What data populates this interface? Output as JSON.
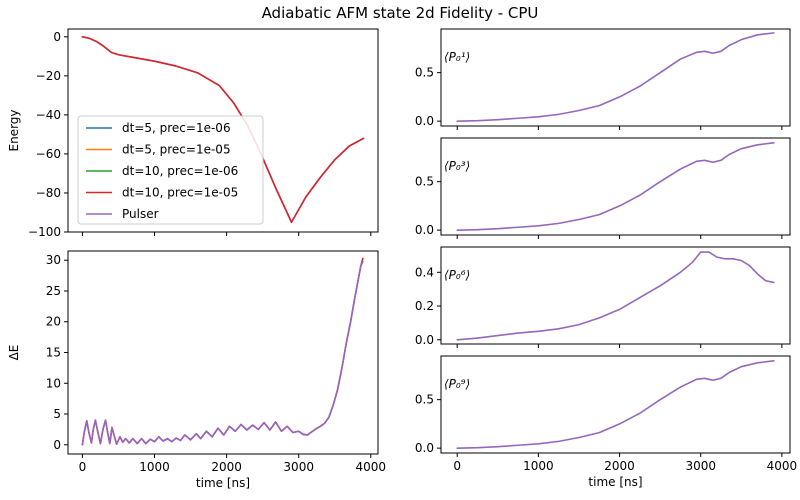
{
  "figure": {
    "title": "Adiabatic AFM state 2d Fidelity - CPU"
  },
  "colors": {
    "dt5_prec1e-06": "#1f77b4",
    "dt5_prec1e-05": "#ff7f0e",
    "dt10_prec1e-06": "#2ca02c",
    "dt10_prec1e-05": "#d62728",
    "pulser": "#9467bd"
  },
  "chart_data": [
    {
      "id": "energy",
      "type": "line",
      "title": "",
      "xlabel": "",
      "ylabel": "Energy",
      "xlim": [
        -200,
        4100
      ],
      "ylim": [
        -100,
        4
      ],
      "xticks": [
        0,
        1000,
        2000,
        3000,
        4000
      ],
      "yticks": [
        0,
        -20,
        -40,
        -60,
        -80,
        -100
      ],
      "ytick_labels": [
        "0",
        "−20",
        "−40",
        "−60",
        "−80",
        "−100"
      ],
      "show_xtick_labels": false,
      "grid": false,
      "legend": {
        "placement": "lower-left",
        "entries": [
          "dt=5, prec=1e-06",
          "dt=5, prec=1e-05",
          "dt=10, prec=1e-06",
          "dt=10, prec=1e-05",
          "Pulser"
        ]
      },
      "series": [
        {
          "name": "Pulser",
          "color_key": "pulser",
          "x": [
            0,
            100,
            200,
            300,
            400,
            500,
            700,
            1000,
            1300,
            1600,
            1900,
            2100,
            2300,
            2500,
            2700,
            2900,
            3100,
            3300,
            3500,
            3700,
            3900
          ],
          "y": [
            0,
            -0.8,
            -2.5,
            -5,
            -8,
            -9.2,
            -10.5,
            -12.5,
            -15,
            -18.5,
            -25,
            -34,
            -46,
            -62,
            -79,
            -95,
            -82,
            -72,
            -63,
            -56,
            -52
          ]
        },
        {
          "name": "dt=10, prec=1e-05",
          "color_key": "dt10_prec1e-05",
          "x": [
            0,
            100,
            200,
            300,
            400,
            500,
            700,
            1000,
            1300,
            1600,
            1900,
            2100,
            2300,
            2500,
            2700,
            2900,
            3100,
            3300,
            3500,
            3700,
            3900
          ],
          "y": [
            0,
            -0.8,
            -2.5,
            -5,
            -8,
            -9.2,
            -10.5,
            -12.5,
            -15,
            -18.5,
            -25,
            -34,
            -46,
            -62,
            -79,
            -95,
            -82,
            -72,
            -63,
            -56,
            -52
          ]
        }
      ]
    },
    {
      "id": "delta-e",
      "type": "line",
      "title": "",
      "xlabel": "time [ns]",
      "ylabel": "ΔE",
      "xlim": [
        -200,
        4100
      ],
      "ylim": [
        -1.5,
        31.5
      ],
      "xticks": [
        0,
        1000,
        2000,
        3000,
        4000
      ],
      "yticks": [
        0,
        5,
        10,
        15,
        20,
        25,
        30
      ],
      "ytick_labels": [
        "0",
        "5",
        "10",
        "15",
        "20",
        "25",
        "30"
      ],
      "show_xtick_labels": true,
      "grid": false,
      "series": [
        {
          "name": "dt=10, prec=1e-05",
          "color_key": "dt10_prec1e-05",
          "x": [
            0,
            25,
            60,
            90,
            125,
            150,
            180,
            215,
            250,
            285,
            320,
            350,
            380,
            410,
            440,
            475,
            520,
            560,
            600,
            650,
            700,
            760,
            820,
            880,
            940,
            1000,
            1060,
            1120,
            1180,
            1240,
            1300,
            1360,
            1420,
            1500,
            1580,
            1640,
            1720,
            1800,
            1880,
            1960,
            2040,
            2120,
            2200,
            2280,
            2360,
            2440,
            2520,
            2600,
            2680,
            2760,
            2840,
            2920,
            3000,
            3060,
            3120,
            3180,
            3240,
            3300,
            3360,
            3420,
            3480,
            3540,
            3600,
            3660,
            3720,
            3780,
            3820,
            3860,
            3890
          ],
          "y": [
            0,
            2,
            3.9,
            2,
            0.3,
            2.5,
            4,
            2,
            0.2,
            2.5,
            4,
            2,
            0.2,
            2.8,
            1.5,
            0.1,
            1.3,
            0.4,
            1,
            0.3,
            1,
            0.2,
            1,
            0.2,
            0.9,
            0.5,
            1.3,
            0.6,
            1,
            0.5,
            1.1,
            0.7,
            1.6,
            0.8,
            1.8,
            1,
            2.2,
            1.3,
            2.7,
            1.6,
            3,
            2.2,
            3.3,
            2.4,
            3.2,
            2.5,
            3.6,
            2.4,
            3.7,
            2.2,
            3,
            2,
            2.2,
            1.7,
            1.6,
            2.1,
            2.6,
            3,
            3.5,
            4.5,
            6.5,
            9,
            12.5,
            16.5,
            20,
            24,
            26.5,
            29,
            30.3
          ]
        },
        {
          "name": "Pulser",
          "color_key": "pulser",
          "x": [
            0,
            25,
            60,
            90,
            125,
            150,
            180,
            215,
            250,
            285,
            320,
            350,
            380,
            410,
            440,
            475,
            520,
            560,
            600,
            650,
            700,
            760,
            820,
            880,
            940,
            1000,
            1060,
            1120,
            1180,
            1240,
            1300,
            1360,
            1420,
            1500,
            1580,
            1640,
            1720,
            1800,
            1880,
            1960,
            2040,
            2120,
            2200,
            2280,
            2360,
            2440,
            2520,
            2600,
            2680,
            2760,
            2840,
            2920,
            3000,
            3060,
            3120,
            3180,
            3240,
            3300,
            3360,
            3420,
            3480,
            3540,
            3600,
            3660,
            3720,
            3780,
            3820,
            3860,
            3890
          ],
          "y": [
            0,
            2,
            3.9,
            2,
            0.3,
            2.5,
            4,
            2,
            0.2,
            2.5,
            4,
            2,
            0.2,
            2.8,
            1.5,
            0.1,
            1.3,
            0.4,
            1,
            0.3,
            1,
            0.2,
            1,
            0.2,
            0.9,
            0.5,
            1.3,
            0.6,
            1,
            0.5,
            1.1,
            0.7,
            1.6,
            0.8,
            1.8,
            1,
            2.2,
            1.3,
            2.7,
            1.6,
            3,
            2.2,
            3.3,
            2.4,
            3.2,
            2.5,
            3.6,
            2.4,
            3.7,
            2.2,
            3,
            2,
            2.2,
            1.7,
            1.6,
            2.1,
            2.6,
            3,
            3.5,
            4.5,
            6.5,
            9,
            12.5,
            16.5,
            20,
            24,
            26.5,
            29,
            29.8
          ]
        }
      ]
    },
    {
      "id": "p0-1",
      "type": "line",
      "title": "",
      "xlabel": "",
      "ylabel": "",
      "annotation": {
        "text": "⟨P₀¹⟩",
        "placement": "top-left"
      },
      "xlim": [
        -200,
        4100
      ],
      "ylim": [
        -0.05,
        0.95
      ],
      "xticks": [
        0,
        1000,
        2000,
        3000,
        4000
      ],
      "yticks": [
        0,
        0.5
      ],
      "ytick_labels": [
        "0.0",
        "0.5"
      ],
      "show_xtick_labels": false,
      "grid": false,
      "series": [
        {
          "name": "Pulser",
          "color_key": "pulser",
          "x": [
            0,
            250,
            500,
            750,
            1000,
            1250,
            1500,
            1750,
            2000,
            2250,
            2500,
            2750,
            2950,
            3050,
            3150,
            3250,
            3350,
            3500,
            3700,
            3900
          ],
          "y": [
            0,
            0.005,
            0.015,
            0.03,
            0.045,
            0.07,
            0.11,
            0.16,
            0.25,
            0.36,
            0.5,
            0.64,
            0.71,
            0.72,
            0.7,
            0.72,
            0.78,
            0.84,
            0.89,
            0.91
          ]
        }
      ]
    },
    {
      "id": "p0-3",
      "type": "line",
      "title": "",
      "xlabel": "",
      "ylabel": "",
      "annotation": {
        "text": "⟨P₀³⟩",
        "placement": "top-left"
      },
      "xlim": [
        -200,
        4100
      ],
      "ylim": [
        -0.05,
        0.95
      ],
      "xticks": [
        0,
        1000,
        2000,
        3000,
        4000
      ],
      "yticks": [
        0,
        0.5
      ],
      "ytick_labels": [
        "0.0",
        "0.5"
      ],
      "show_xtick_labels": false,
      "grid": false,
      "series": [
        {
          "name": "Pulser",
          "color_key": "pulser",
          "x": [
            0,
            250,
            500,
            750,
            1000,
            1250,
            1500,
            1750,
            2000,
            2250,
            2500,
            2750,
            2950,
            3050,
            3150,
            3250,
            3350,
            3500,
            3700,
            3900
          ],
          "y": [
            0,
            0.005,
            0.015,
            0.03,
            0.045,
            0.07,
            0.11,
            0.16,
            0.25,
            0.36,
            0.5,
            0.63,
            0.71,
            0.72,
            0.7,
            0.72,
            0.78,
            0.84,
            0.88,
            0.9
          ]
        }
      ]
    },
    {
      "id": "p0-6",
      "type": "line",
      "title": "",
      "xlabel": "",
      "ylabel": "",
      "annotation": {
        "text": "⟨P₀⁶⟩",
        "placement": "top-left"
      },
      "xlim": [
        -200,
        4100
      ],
      "ylim": [
        -0.025,
        0.55
      ],
      "xticks": [
        0,
        1000,
        2000,
        3000,
        4000
      ],
      "yticks": [
        0,
        0.2,
        0.4
      ],
      "ytick_labels": [
        "0.0",
        "0.2",
        "0.4"
      ],
      "show_xtick_labels": false,
      "grid": false,
      "series": [
        {
          "name": "Pulser",
          "color_key": "pulser",
          "x": [
            0,
            250,
            500,
            750,
            1000,
            1250,
            1500,
            1750,
            2000,
            2250,
            2500,
            2750,
            2900,
            3000,
            3100,
            3200,
            3300,
            3400,
            3500,
            3600,
            3700,
            3800,
            3900
          ],
          "y": [
            0,
            0.01,
            0.025,
            0.04,
            0.05,
            0.065,
            0.09,
            0.13,
            0.18,
            0.25,
            0.32,
            0.4,
            0.46,
            0.52,
            0.52,
            0.49,
            0.48,
            0.48,
            0.47,
            0.44,
            0.39,
            0.35,
            0.34
          ]
        }
      ]
    },
    {
      "id": "p0-9",
      "type": "line",
      "title": "",
      "xlabel": "time [ns]",
      "ylabel": "",
      "annotation": {
        "text": "⟨P₀⁹⟩",
        "placement": "top-left"
      },
      "xlim": [
        -200,
        4100
      ],
      "ylim": [
        -0.05,
        0.95
      ],
      "xticks": [
        0,
        1000,
        2000,
        3000,
        4000
      ],
      "yticks": [
        0,
        0.5
      ],
      "ytick_labels": [
        "0.0",
        "0.5"
      ],
      "show_xtick_labels": true,
      "grid": false,
      "series": [
        {
          "name": "Pulser",
          "color_key": "pulser",
          "x": [
            0,
            250,
            500,
            750,
            1000,
            1250,
            1500,
            1750,
            2000,
            2250,
            2500,
            2750,
            2950,
            3050,
            3150,
            3250,
            3350,
            3500,
            3700,
            3900
          ],
          "y": [
            0,
            0.005,
            0.015,
            0.03,
            0.045,
            0.07,
            0.11,
            0.16,
            0.25,
            0.36,
            0.5,
            0.63,
            0.71,
            0.72,
            0.7,
            0.72,
            0.78,
            0.84,
            0.88,
            0.9
          ]
        }
      ]
    }
  ]
}
